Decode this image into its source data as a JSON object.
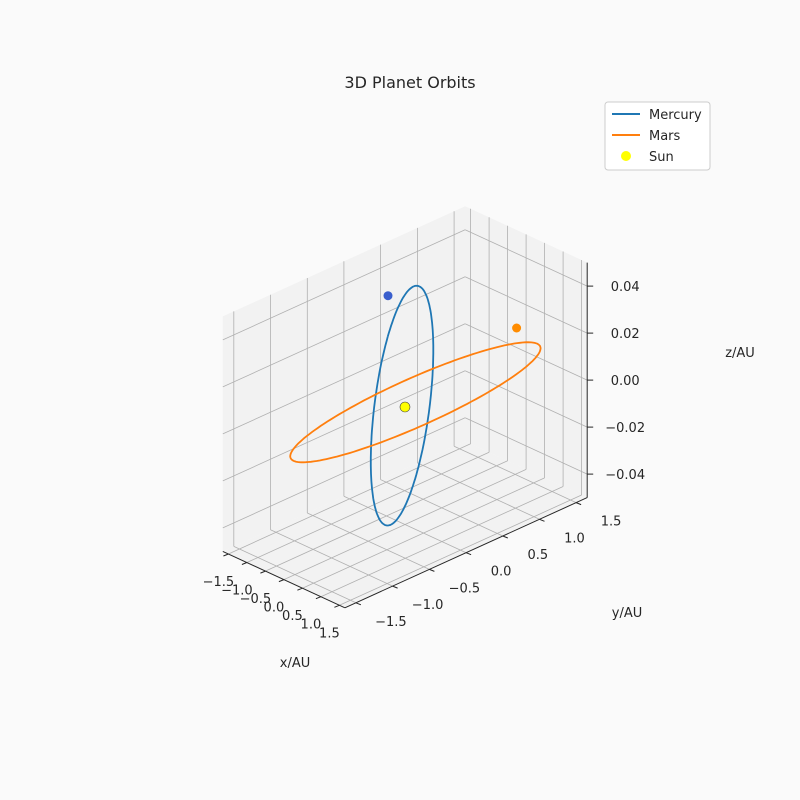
{
  "chart_data": {
    "type": "line",
    "projection": "3d",
    "title": "3D Planet Orbits",
    "xlabel": "x/AU",
    "ylabel": "y/AU",
    "zlabel": "z/AU",
    "xlim": [
      -1.65,
      1.65
    ],
    "ylim": [
      -1.65,
      1.65
    ],
    "zlim": [
      -0.05,
      0.05
    ],
    "x_ticks": [
      -1.5,
      -1.0,
      -0.5,
      0.0,
      0.5,
      1.0,
      1.5
    ],
    "y_ticks": [
      -1.5,
      -1.0,
      -0.5,
      0.0,
      0.5,
      1.0,
      1.5
    ],
    "z_ticks": [
      -0.04,
      -0.02,
      0.0,
      0.02,
      0.04
    ],
    "x_tick_labels": [
      "−1.5",
      "−1.0",
      "−0.5",
      "0.0",
      "0.5",
      "1.0",
      "1.5"
    ],
    "y_tick_labels": [
      "−1.5",
      "−1.0",
      "−0.5",
      "0.0",
      "0.5",
      "1.0",
      "1.5"
    ],
    "z_tick_labels": [
      "−0.04",
      "−0.02",
      "0.00",
      "0.02",
      "0.04"
    ],
    "grid": true,
    "legend_position": "top-right",
    "series": [
      {
        "name": "Mercury",
        "kind": "orbit",
        "a": 0.387,
        "e": 0.206,
        "color": "#1f77b4",
        "current_position": {
          "x": -0.46,
          "y": 0.0,
          "z": 0.0
        },
        "marker_color": "#3a5fcd"
      },
      {
        "name": "Mars",
        "kind": "orbit",
        "a": 1.524,
        "e": 0.093,
        "color": "#ff7f0e",
        "current_position": {
          "x": 0.0,
          "y": 1.52,
          "z": 0.0
        },
        "marker_color": "#ff8c00"
      },
      {
        "name": "Sun",
        "kind": "point",
        "x": 0.0,
        "y": 0.0,
        "z": 0.0,
        "color": "#ffff00"
      }
    ]
  }
}
